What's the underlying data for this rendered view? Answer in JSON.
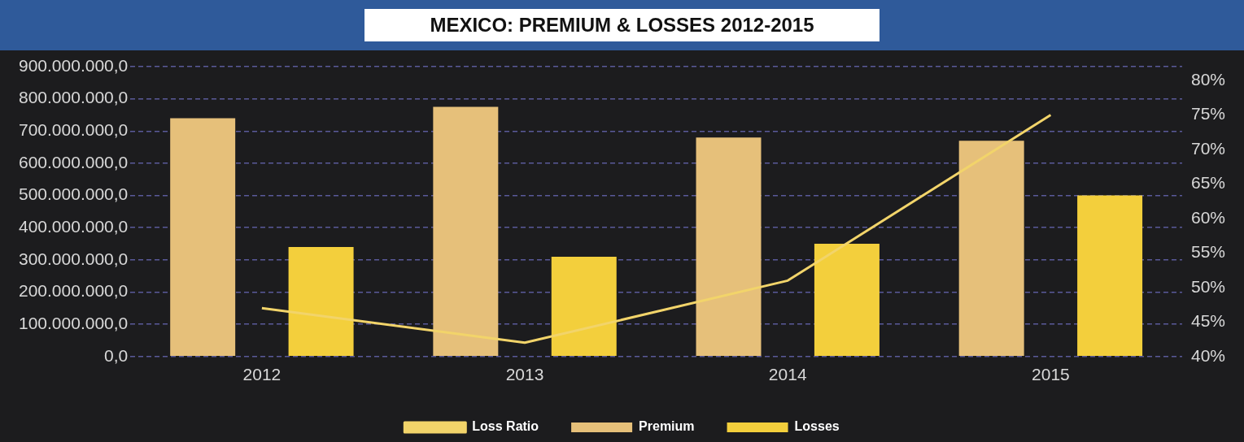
{
  "chart_data": {
    "type": "bar",
    "title": "MEXICO: PREMIUM & LOSSES 2012-2015",
    "categories": [
      "2012",
      "2013",
      "2014",
      "2015"
    ],
    "series": [
      {
        "name": "Premium",
        "color": "#e6c07a",
        "values": [
          740000000,
          775000000,
          680000000,
          670000000
        ]
      },
      {
        "name": "Losses",
        "color": "#f3cf3c",
        "values": [
          340000000,
          310000000,
          350000000,
          500000000
        ]
      },
      {
        "name": "Loss Ratio",
        "type": "line",
        "axis": "y2",
        "color": "#f2d46a",
        "values": [
          47,
          42,
          51,
          75
        ]
      }
    ],
    "ylim": [
      0,
      900000000
    ],
    "yticks": [
      {
        "value": 0,
        "label": "0,0"
      },
      {
        "value": 100000000,
        "label": "100.000.000,0"
      },
      {
        "value": 200000000,
        "label": "200.000.000,0"
      },
      {
        "value": 300000000,
        "label": "300.000.000,0"
      },
      {
        "value": 400000000,
        "label": "400.000.000,0"
      },
      {
        "value": 500000000,
        "label": "500.000.000,0"
      },
      {
        "value": 600000000,
        "label": "600.000.000,0"
      },
      {
        "value": 700000000,
        "label": "700.000.000,0"
      },
      {
        "value": 800000000,
        "label": "800.000.000,0"
      },
      {
        "value": 900000000,
        "label": "900.000.000,0"
      }
    ],
    "y2lim": [
      40,
      82
    ],
    "y2ticks": [
      {
        "value": 40,
        "label": "40%"
      },
      {
        "value": 45,
        "label": "45%"
      },
      {
        "value": 50,
        "label": "50%"
      },
      {
        "value": 55,
        "label": "55%"
      },
      {
        "value": 60,
        "label": "60%"
      },
      {
        "value": 65,
        "label": "65%"
      },
      {
        "value": 70,
        "label": "70%"
      },
      {
        "value": 75,
        "label": "75%"
      },
      {
        "value": 80,
        "label": "80%"
      }
    ],
    "grid": "y",
    "legend": "bottom",
    "marker": "none",
    "line_style": "solid"
  }
}
